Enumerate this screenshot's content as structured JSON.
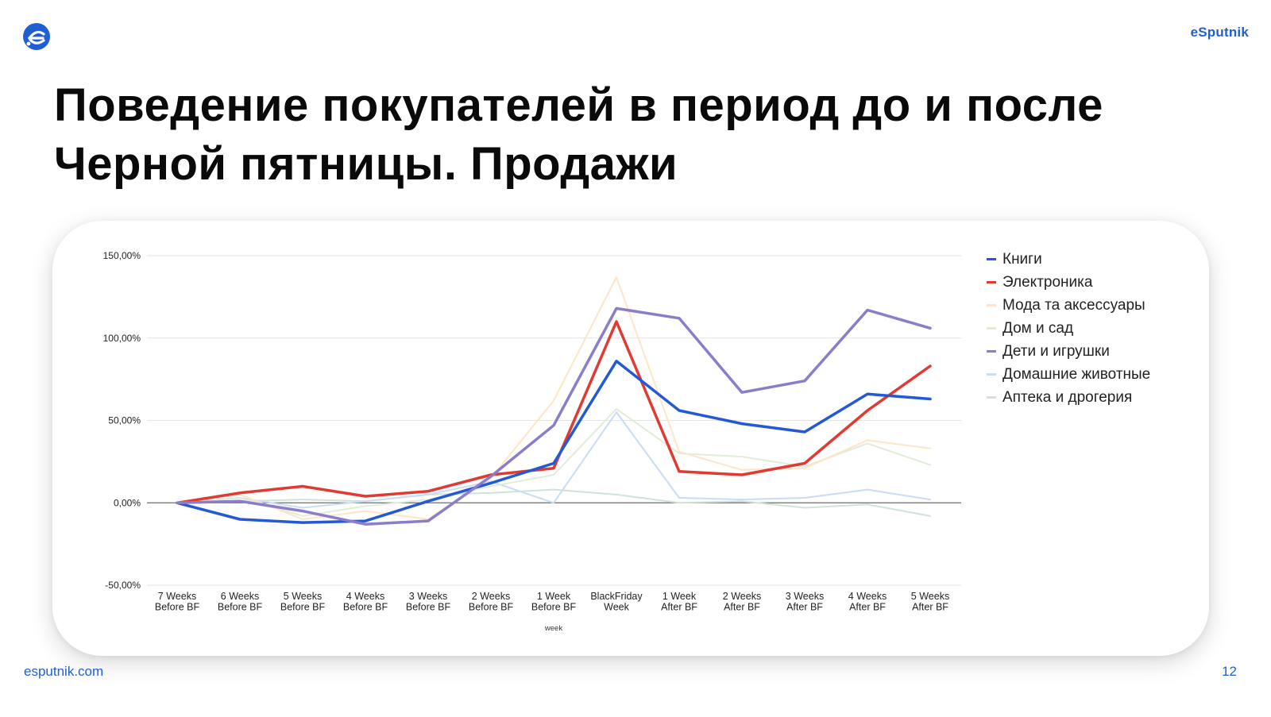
{
  "header": {
    "brand": "eSputnik",
    "title_line1": "Поведение покупателей в период до и после",
    "title_line2": "Черной пятницы. Продажи"
  },
  "footer": {
    "url": "esputnik.com",
    "page_number": "12"
  },
  "colors": {
    "brand": "#1f5fd1",
    "grid": "#e3e3e3",
    "zero_line": "#6b6b6b"
  },
  "chart_data": {
    "type": "line",
    "xlabel": "week",
    "ylabel": "",
    "ylim": [
      -50,
      150
    ],
    "yticks": [
      150,
      100,
      50,
      0,
      -50
    ],
    "ytick_labels": [
      "150,00%",
      "100,00%",
      "50,00%",
      "0,00%",
      "-50,00%"
    ],
    "categories": [
      [
        "7 Weeks",
        "Before BF"
      ],
      [
        "6 Weeks",
        "Before BF"
      ],
      [
        "5 Weeks",
        "Before BF"
      ],
      [
        "4 Weeks",
        "Before BF"
      ],
      [
        "3 Weeks",
        "Before BF"
      ],
      [
        "2 Weeks",
        "Before BF"
      ],
      [
        "1 Week",
        "Before BF"
      ],
      [
        "BlackFriday",
        "Week"
      ],
      [
        "1 Week",
        "After BF"
      ],
      [
        "2 Weeks",
        "After BF"
      ],
      [
        "3 Weeks",
        "After BF"
      ],
      [
        "4 Weeks",
        "After BF"
      ],
      [
        "5 Weeks",
        "After BF"
      ]
    ],
    "grid": true,
    "legend_position": "right",
    "series": [
      {
        "name": "Аптека и дрогерия",
        "color": "#cfe3da",
        "width": 2,
        "values": [
          0,
          1,
          2,
          1,
          5,
          6,
          8,
          5,
          0,
          1,
          -3,
          -1,
          -8
        ]
      },
      {
        "name": "Домашние животные",
        "color": "#c8dcf7",
        "width": 2,
        "values": [
          0,
          3,
          -3,
          1,
          5,
          13,
          0,
          55,
          3,
          2,
          3,
          8,
          2
        ]
      },
      {
        "name": "Дом и сад",
        "color": "#e1ecd9",
        "width": 2,
        "values": [
          0,
          3,
          -8,
          -2,
          2,
          10,
          17,
          57,
          30,
          28,
          22,
          36,
          23
        ]
      },
      {
        "name": "Мода та аксессуары",
        "color": "#fde5c8",
        "width": 2,
        "values": [
          0,
          5,
          -10,
          -5,
          -10,
          15,
          62,
          137,
          31,
          20,
          21,
          38,
          33
        ]
      },
      {
        "name": "Электроника",
        "color": "#e03a32",
        "width": 3.5,
        "values": [
          0,
          6,
          10,
          4,
          7,
          17,
          21,
          110,
          19,
          17,
          24,
          56,
          83
        ]
      },
      {
        "name": "Книги",
        "color": "#2459d6",
        "width": 3.5,
        "values": [
          0,
          -10,
          -12,
          -11,
          1,
          12,
          24,
          86,
          56,
          48,
          43,
          66,
          63
        ]
      },
      {
        "name": "Дети и игрушки",
        "color": "#8c7cc9",
        "width": 3.5,
        "values": [
          0,
          1,
          -5,
          -13,
          -11,
          16,
          47,
          118,
          112,
          67,
          74,
          117,
          106
        ]
      }
    ],
    "legend_order": [
      "Книги",
      "Электроника",
      "Мода та аксессуары",
      "Дом и сад",
      "Дети и игрушки",
      "Домашние животные",
      "Аптека и дрогерия"
    ]
  }
}
